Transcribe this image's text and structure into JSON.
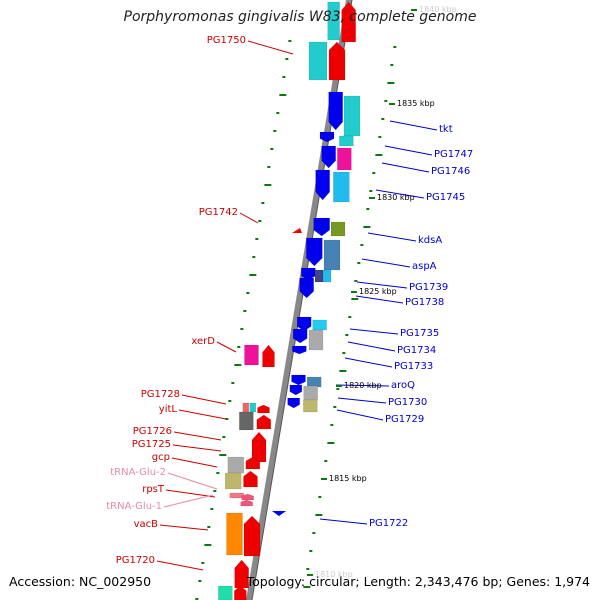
{
  "title": "Porphyromonas gingivalis W83, complete genome",
  "accession_label": "Accession: NC_002950",
  "summary_label": "Topology: circular; Length: 2,343,476 bp; Genes: 1,974",
  "kbp_marks": [
    {
      "label": "1840 kbp",
      "faded": true
    },
    {
      "label": "1835 kbp",
      "faded": false
    },
    {
      "label": "1830 kbp",
      "faded": false
    },
    {
      "label": "1825 kbp",
      "faded": false
    },
    {
      "label": "1820 kbp",
      "faded": false
    },
    {
      "label": "1815 kbp",
      "faded": false
    },
    {
      "label": "1810 kbp",
      "faded": true
    }
  ],
  "left_genes": [
    {
      "name": "PG1750",
      "color": "#cc0000"
    },
    {
      "name": "PG1742",
      "color": "#cc0000"
    },
    {
      "name": "xerD",
      "color": "#cc0000"
    },
    {
      "name": "PG1728",
      "color": "#cc0000"
    },
    {
      "name": "yitL",
      "color": "#cc0000"
    },
    {
      "name": "PG1726",
      "color": "#cc0000"
    },
    {
      "name": "PG1725",
      "color": "#cc0000"
    },
    {
      "name": "gcp",
      "color": "#cc0000"
    },
    {
      "name": "tRNA-Glu-2",
      "color": "#e88aa8"
    },
    {
      "name": "rpsT",
      "color": "#cc0000"
    },
    {
      "name": "tRNA-Glu-1",
      "color": "#e88aa8"
    },
    {
      "name": "vacB",
      "color": "#cc0000"
    },
    {
      "name": "PG1720",
      "color": "#cc0000"
    }
  ],
  "right_genes": [
    {
      "name": "tkt",
      "color": "#0000cc"
    },
    {
      "name": "PG1747",
      "color": "#0000cc"
    },
    {
      "name": "PG1746",
      "color": "#0000cc"
    },
    {
      "name": "PG1745",
      "color": "#0000cc"
    },
    {
      "name": "kdsA",
      "color": "#0000cc"
    },
    {
      "name": "aspA",
      "color": "#0000cc"
    },
    {
      "name": "PG1739",
      "color": "#0000cc"
    },
    {
      "name": "PG1738",
      "color": "#0000cc"
    },
    {
      "name": "PG1735",
      "color": "#0000cc"
    },
    {
      "name": "PG1734",
      "color": "#0000cc"
    },
    {
      "name": "PG1733",
      "color": "#0000cc"
    },
    {
      "name": "aroQ",
      "color": "#0000cc"
    },
    {
      "name": "PG1730",
      "color": "#0000cc"
    },
    {
      "name": "PG1729",
      "color": "#0000cc"
    },
    {
      "name": "PG1722",
      "color": "#0000cc"
    }
  ],
  "colors": {
    "backbone": "#888888",
    "reverse_strand": "#ee0000",
    "forward_strand": "#0000ee",
    "gc_skew_ticks": "#117711",
    "cyan": "#22cccc",
    "steel_blue": "#4682b4",
    "magenta": "#ee1199",
    "olive": "#779922",
    "grey": "#aaaaaa",
    "khaki": "#bdb76b",
    "orange": "#ff8800"
  }
}
